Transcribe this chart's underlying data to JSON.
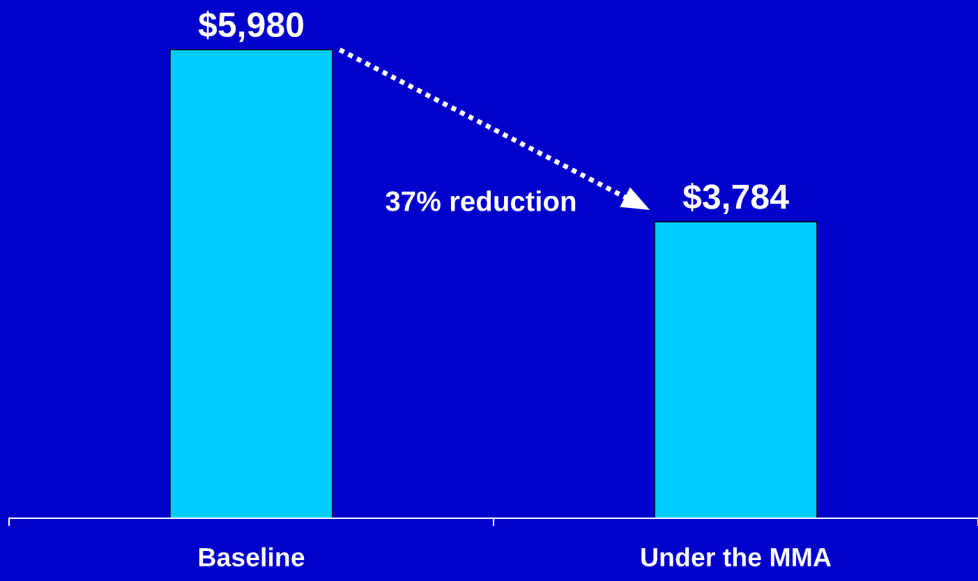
{
  "chart_data": {
    "type": "bar",
    "categories": [
      "Baseline",
      "Under the MMA"
    ],
    "values": [
      5980,
      3784
    ],
    "value_labels": [
      "$5,980",
      "$3,784"
    ],
    "color": "#00ccff",
    "annotations": [
      "37% reduction"
    ],
    "grid": false,
    "legend": false
  }
}
